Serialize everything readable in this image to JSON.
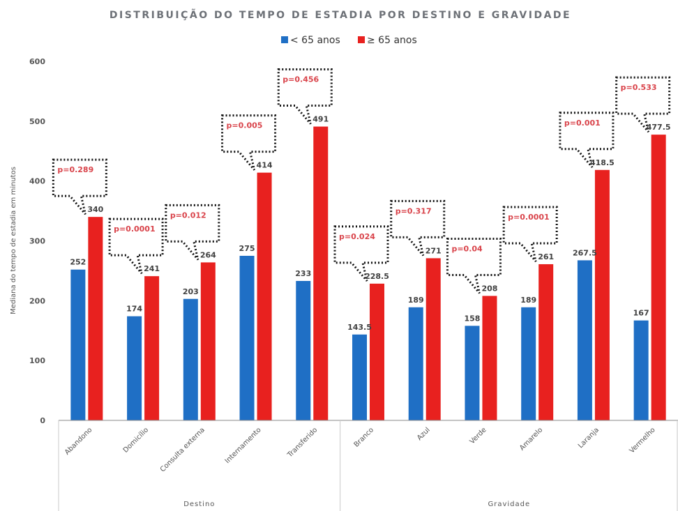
{
  "chart_data": {
    "type": "bar",
    "title": "DISTRIBUIÇÃO DO TEMPO DE ESTADIA POR DESTINO E GRAVIDADE",
    "ylabel": "Mediana do tempo de estadia em minutos",
    "xlabel": "",
    "ylim": [
      0,
      600
    ],
    "yticks": [
      "0",
      "100",
      "200",
      "300",
      "400",
      "500",
      "600"
    ],
    "legend_position": "top",
    "grid": false,
    "categories": [
      "Abandono",
      "Domicílio",
      "Consulta externa",
      "Internamento",
      "Transferido",
      "Branco",
      "Azul",
      "Verde",
      "Amarelo",
      "Laranja",
      "Vermelho"
    ],
    "groups": [
      {
        "label": "Destino",
        "count": 5
      },
      {
        "label": "Gravidade",
        "count": 6
      }
    ],
    "series": [
      {
        "name": "< 65 anos",
        "color": "#1f6fc5",
        "values": [
          252,
          174,
          203,
          275,
          233,
          143.5,
          189,
          158,
          189,
          267.5,
          167
        ],
        "labels": [
          "252",
          "174",
          "203",
          "275",
          "233",
          "143.5",
          "189",
          "158",
          "189",
          "267.5",
          "167"
        ]
      },
      {
        "name": "≥ 65 anos",
        "color": "#e8211f",
        "values": [
          340,
          241,
          264,
          414,
          491,
          228.5,
          271,
          208,
          261,
          418.5,
          477.5
        ],
        "labels": [
          "340",
          "241",
          "264",
          "414",
          "491",
          "228.5",
          "271",
          "208",
          "261",
          "418.5",
          "477.5"
        ]
      }
    ],
    "annotations": [
      "p=0.289",
      "p=0.0001",
      "p=0.012",
      "p=0.005",
      "p=0.456",
      "p=0.024",
      "p=0.317",
      "p=0.04",
      "p=0.0001",
      "p=0.001",
      "p=0.533"
    ],
    "colors": {
      "annotation_text": "#d9434a",
      "axis": "#8a8a8a"
    }
  }
}
